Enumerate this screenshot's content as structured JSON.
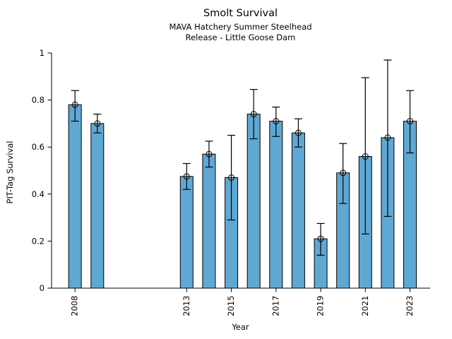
{
  "header": {
    "title": "Smolt Survival",
    "subtitle1": "MAVA Hatchery Summer Steelhead",
    "subtitle2": "Release - Little Goose Dam"
  },
  "chart_data": {
    "type": "bar",
    "title": "Smolt Survival",
    "subtitle": [
      "MAVA Hatchery Summer Steelhead",
      "Release - Little Goose Dam"
    ],
    "xlabel": "Year",
    "ylabel": "PIT-Tag Survival",
    "ylim": [
      0,
      1
    ],
    "yticks": [
      0,
      0.2,
      0.4,
      0.6,
      0.8,
      1
    ],
    "xlim": [
      2006.95,
      2023.9
    ],
    "xticks": [
      2008,
      2013,
      2015,
      2017,
      2019,
      2021,
      2023
    ],
    "xtick_rotation": 90,
    "grid": false,
    "legend": "none",
    "bar_color": "#5fa8d3",
    "bar_edge_color": "#000000",
    "error_bar_color": "#000000",
    "marker": "open-circle",
    "series": [
      {
        "name": "PIT-Tag Survival",
        "x": [
          2008,
          2009,
          2013,
          2014,
          2015,
          2016,
          2017,
          2018,
          2019,
          2020,
          2021,
          2022,
          2023
        ],
        "values": [
          0.78,
          0.7,
          0.475,
          0.57,
          0.47,
          0.74,
          0.71,
          0.66,
          0.21,
          0.49,
          0.56,
          0.64,
          0.71
        ],
        "ci_low": [
          0.71,
          0.66,
          0.42,
          0.515,
          0.29,
          0.635,
          0.645,
          0.6,
          0.14,
          0.36,
          0.23,
          0.305,
          0.575
        ],
        "ci_high": [
          0.84,
          0.74,
          0.53,
          0.625,
          0.65,
          0.845,
          0.77,
          0.72,
          0.275,
          0.615,
          0.895,
          0.97,
          0.84
        ]
      }
    ]
  }
}
